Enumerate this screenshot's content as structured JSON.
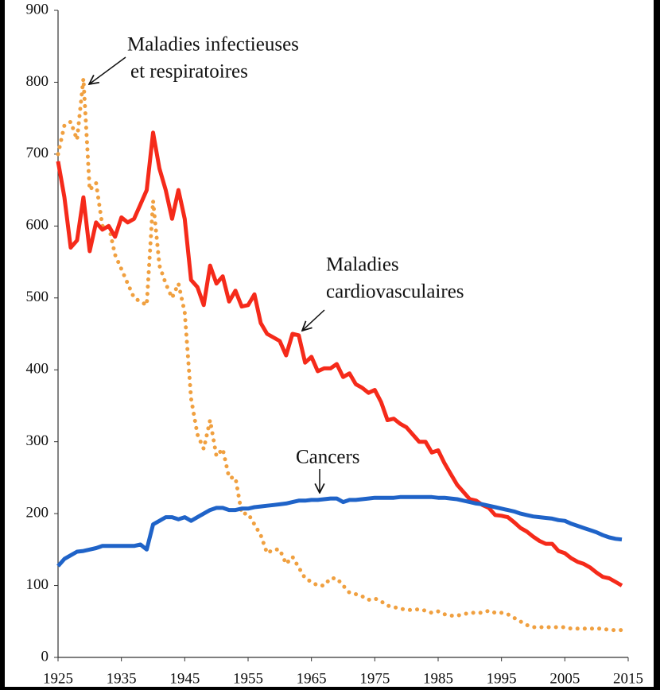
{
  "chart_data": {
    "type": "line",
    "x": [
      1925,
      1926,
      1927,
      1928,
      1929,
      1930,
      1931,
      1932,
      1933,
      1934,
      1935,
      1936,
      1937,
      1938,
      1939,
      1940,
      1941,
      1942,
      1943,
      1944,
      1945,
      1946,
      1947,
      1948,
      1949,
      1950,
      1951,
      1952,
      1953,
      1954,
      1955,
      1956,
      1957,
      1958,
      1959,
      1960,
      1961,
      1962,
      1963,
      1964,
      1965,
      1966,
      1967,
      1968,
      1969,
      1970,
      1971,
      1972,
      1973,
      1974,
      1975,
      1976,
      1977,
      1978,
      1979,
      1980,
      1981,
      1982,
      1983,
      1984,
      1985,
      1986,
      1987,
      1988,
      1989,
      1990,
      1991,
      1992,
      1993,
      1994,
      1995,
      1996,
      1997,
      1998,
      1999,
      2000,
      2001,
      2002,
      2003,
      2004,
      2005,
      2006,
      2007,
      2008,
      2009,
      2010,
      2011,
      2012,
      2013,
      2014
    ],
    "series": [
      {
        "name": [
          "Maladies infectieuses",
          "et respiratoires"
        ],
        "color": "#f0a040",
        "dotted": true,
        "values": [
          700,
          740,
          745,
          720,
          805,
          650,
          660,
          600,
          600,
          560,
          540,
          520,
          500,
          495,
          490,
          635,
          545,
          520,
          500,
          520,
          480,
          360,
          310,
          290,
          330,
          280,
          290,
          250,
          250,
          200,
          200,
          185,
          170,
          145,
          150,
          150,
          130,
          140,
          125,
          110,
          105,
          100,
          100,
          110,
          110,
          100,
          90,
          88,
          85,
          80,
          82,
          78,
          72,
          70,
          68,
          66,
          66,
          67,
          65,
          62,
          64,
          60,
          58,
          58,
          60,
          62,
          62,
          62,
          65,
          62,
          62,
          60,
          55,
          50,
          45,
          42,
          42,
          42,
          42,
          42,
          42,
          40,
          40,
          40,
          40,
          40,
          40,
          38,
          38,
          38
        ]
      },
      {
        "name": [
          "Maladies",
          "cardiovasculaires"
        ],
        "color": "#f52a1a",
        "dotted": false,
        "values": [
          690,
          640,
          570,
          580,
          640,
          565,
          605,
          595,
          600,
          585,
          612,
          605,
          610,
          630,
          650,
          730,
          680,
          650,
          610,
          650,
          610,
          525,
          515,
          490,
          545,
          520,
          530,
          495,
          510,
          488,
          490,
          505,
          465,
          450,
          445,
          440,
          420,
          450,
          448,
          410,
          418,
          398,
          402,
          402,
          408,
          390,
          395,
          380,
          375,
          368,
          372,
          355,
          330,
          332,
          325,
          320,
          310,
          300,
          300,
          285,
          288,
          270,
          255,
          240,
          230,
          220,
          218,
          212,
          208,
          198,
          197,
          195,
          188,
          180,
          175,
          168,
          162,
          158,
          158,
          148,
          145,
          138,
          133,
          130,
          125,
          118,
          112,
          110,
          105,
          100
        ]
      },
      {
        "name": [
          "Cancers"
        ],
        "color": "#1f63c8",
        "dotted": false,
        "values": [
          127,
          137,
          142,
          147,
          148,
          150,
          152,
          155,
          155,
          155,
          155,
          155,
          155,
          157,
          150,
          185,
          190,
          195,
          195,
          192,
          195,
          190,
          195,
          200,
          205,
          208,
          208,
          205,
          205,
          207,
          207,
          209,
          210,
          211,
          212,
          213,
          214,
          216,
          218,
          218,
          219,
          219,
          220,
          221,
          221,
          216,
          219,
          219,
          220,
          221,
          222,
          222,
          222,
          222,
          223,
          223,
          223,
          223,
          223,
          223,
          222,
          222,
          221,
          220,
          218,
          216,
          214,
          213,
          211,
          209,
          207,
          205,
          203,
          200,
          198,
          196,
          195,
          194,
          193,
          191,
          190,
          186,
          183,
          180,
          177,
          174,
          170,
          167,
          165,
          164
        ]
      }
    ],
    "xlim": [
      1925,
      2015
    ],
    "xticks": [
      1925,
      1935,
      1945,
      1955,
      1965,
      1975,
      1985,
      1995,
      2005,
      2015
    ],
    "ylim": [
      0,
      900
    ],
    "yticks": [
      0,
      100,
      200,
      300,
      400,
      500,
      600,
      700,
      800,
      900
    ],
    "grid": false
  }
}
